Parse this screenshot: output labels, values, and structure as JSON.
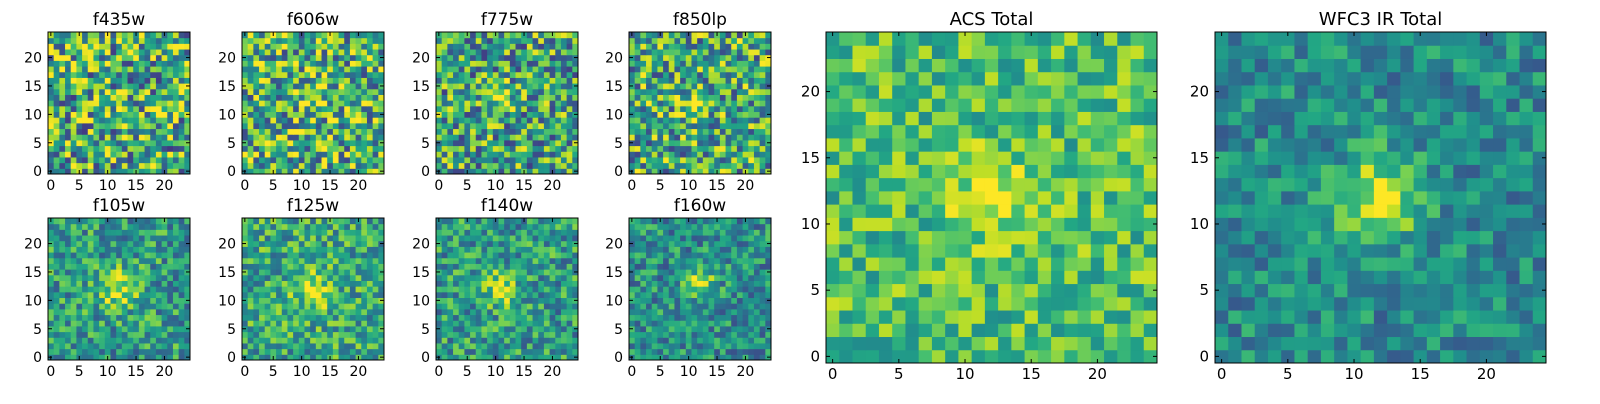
{
  "figure": {
    "background": "#ffffff"
  },
  "chart_data": [
    {
      "type": "heatmap",
      "title": "f435w",
      "grid_size": 25,
      "xticks": [
        0,
        5,
        10,
        15,
        20
      ],
      "yticks": [
        0,
        5,
        10,
        15,
        20
      ],
      "xlim": [
        -0.5,
        24.5
      ],
      "ylim": [
        -0.5,
        24.5
      ],
      "grid": false,
      "colormap": "viridis",
      "seed": 11,
      "noise": 0.9,
      "base": 0.62,
      "blob": {
        "x": 12,
        "y": 12,
        "amp": 0.05,
        "sigma": 2.5
      }
    },
    {
      "type": "heatmap",
      "title": "f606w",
      "grid_size": 25,
      "xticks": [
        0,
        5,
        10,
        15,
        20
      ],
      "yticks": [
        0,
        5,
        10,
        15,
        20
      ],
      "xlim": [
        -0.5,
        24.5
      ],
      "ylim": [
        -0.5,
        24.5
      ],
      "grid": false,
      "colormap": "viridis",
      "seed": 23,
      "noise": 0.85,
      "base": 0.64,
      "blob": {
        "x": 12,
        "y": 13,
        "amp": 0.2,
        "sigma": 2.0
      }
    },
    {
      "type": "heatmap",
      "title": "f775w",
      "grid_size": 25,
      "xticks": [
        0,
        5,
        10,
        15,
        20
      ],
      "yticks": [
        0,
        5,
        10,
        15,
        20
      ],
      "xlim": [
        -0.5,
        24.5
      ],
      "ylim": [
        -0.5,
        24.5
      ],
      "grid": false,
      "colormap": "viridis",
      "seed": 37,
      "noise": 0.8,
      "base": 0.58,
      "blob": {
        "x": 11,
        "y": 13,
        "amp": 0.35,
        "sigma": 1.5
      }
    },
    {
      "type": "heatmap",
      "title": "f850lp",
      "grid_size": 25,
      "xticks": [
        0,
        5,
        10,
        15,
        20
      ],
      "yticks": [
        0,
        5,
        10,
        15,
        20
      ],
      "xlim": [
        -0.5,
        24.5
      ],
      "ylim": [
        -0.5,
        24.5
      ],
      "grid": false,
      "colormap": "viridis",
      "seed": 41,
      "noise": 0.8,
      "base": 0.6,
      "blob": {
        "x": 11,
        "y": 12,
        "amp": 0.3,
        "sigma": 1.8
      }
    },
    {
      "type": "heatmap",
      "title": "f105w",
      "grid_size": 25,
      "xticks": [
        0,
        5,
        10,
        15,
        20
      ],
      "yticks": [
        0,
        5,
        10,
        15,
        20
      ],
      "xlim": [
        -0.5,
        24.5
      ],
      "ylim": [
        -0.5,
        24.5
      ],
      "grid": false,
      "colormap": "viridis",
      "seed": 53,
      "noise": 0.55,
      "base": 0.55,
      "blob": {
        "x": 12,
        "y": 12,
        "amp": 0.35,
        "sigma": 2.5
      }
    },
    {
      "type": "heatmap",
      "title": "f125w",
      "grid_size": 25,
      "xticks": [
        0,
        5,
        10,
        15,
        20
      ],
      "yticks": [
        0,
        5,
        10,
        15,
        20
      ],
      "xlim": [
        -0.5,
        24.5
      ],
      "ylim": [
        -0.5,
        24.5
      ],
      "grid": false,
      "colormap": "viridis",
      "seed": 67,
      "noise": 0.55,
      "base": 0.6,
      "blob": {
        "x": 12,
        "y": 12,
        "amp": 0.3,
        "sigma": 2.5
      }
    },
    {
      "type": "heatmap",
      "title": "f140w",
      "grid_size": 25,
      "xticks": [
        0,
        5,
        10,
        15,
        20
      ],
      "yticks": [
        0,
        5,
        10,
        15,
        20
      ],
      "xlim": [
        -0.5,
        24.5
      ],
      "ylim": [
        -0.5,
        24.5
      ],
      "grid": false,
      "colormap": "viridis",
      "seed": 71,
      "noise": 0.55,
      "base": 0.55,
      "blob": {
        "x": 11,
        "y": 12,
        "amp": 0.35,
        "sigma": 2.2
      }
    },
    {
      "type": "heatmap",
      "title": "f160w",
      "grid_size": 25,
      "xticks": [
        0,
        5,
        10,
        15,
        20
      ],
      "yticks": [
        0,
        5,
        10,
        15,
        20
      ],
      "xlim": [
        -0.5,
        24.5
      ],
      "ylim": [
        -0.5,
        24.5
      ],
      "grid": false,
      "colormap": "viridis",
      "seed": 83,
      "noise": 0.5,
      "base": 0.5,
      "blob": {
        "x": 12,
        "y": 13,
        "amp": 0.45,
        "sigma": 1.8
      }
    },
    {
      "type": "heatmap",
      "title": "ACS Total",
      "grid_size": 25,
      "xticks": [
        0,
        5,
        10,
        15,
        20
      ],
      "yticks": [
        0,
        5,
        10,
        15,
        20
      ],
      "xlim": [
        -0.5,
        24.5
      ],
      "ylim": [
        -0.5,
        24.5
      ],
      "grid": false,
      "colormap": "viridis",
      "seed": 97,
      "noise": 0.45,
      "base": 0.7,
      "blob": {
        "x": 12,
        "y": 12,
        "amp": 0.3,
        "sigma": 2.0
      }
    },
    {
      "type": "heatmap",
      "title": "WFC3 IR Total",
      "grid_size": 25,
      "xticks": [
        0,
        5,
        10,
        15,
        20
      ],
      "yticks": [
        0,
        5,
        10,
        15,
        20
      ],
      "xlim": [
        -0.5,
        24.5
      ],
      "ylim": [
        -0.5,
        24.5
      ],
      "grid": false,
      "colormap": "viridis",
      "seed": 101,
      "noise": 0.4,
      "base": 0.48,
      "blob": {
        "x": 12,
        "y": 12,
        "amp": 0.5,
        "sigma": 2.2
      }
    }
  ]
}
